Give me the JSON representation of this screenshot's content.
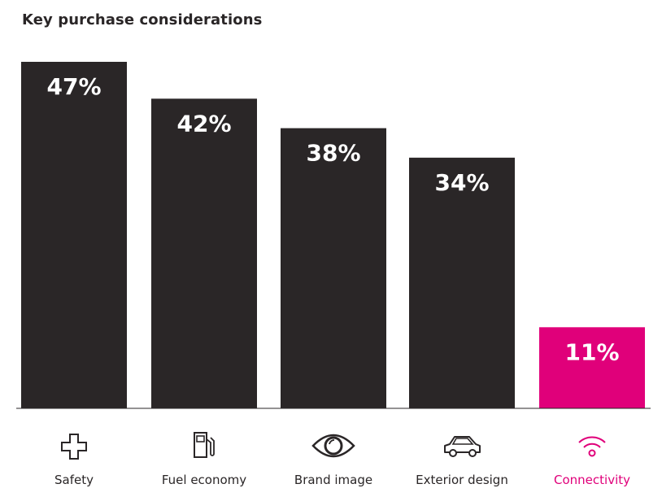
{
  "chart_data": {
    "type": "bar",
    "title": "Key purchase considerations",
    "xlabel": "",
    "ylabel": "",
    "ylim": [
      0,
      47
    ],
    "grid": false,
    "legend": "none",
    "categories": [
      "Safety",
      "Fuel economy",
      "Brand image",
      "Exterior design",
      "Connectivity"
    ],
    "values": [
      47,
      42,
      38,
      34,
      11
    ],
    "value_labels": [
      "47%",
      "42%",
      "38%",
      "34%",
      "11%"
    ],
    "icons": [
      "cross-icon",
      "fuel-pump-icon",
      "eye-icon",
      "car-icon",
      "wifi-icon"
    ],
    "bar_colors": [
      "#2a2627",
      "#2a2627",
      "#2a2627",
      "#2a2627",
      "#e0007a"
    ],
    "label_colors": [
      "#2a2627",
      "#2a2627",
      "#2a2627",
      "#2a2627",
      "#e0007a"
    ]
  }
}
